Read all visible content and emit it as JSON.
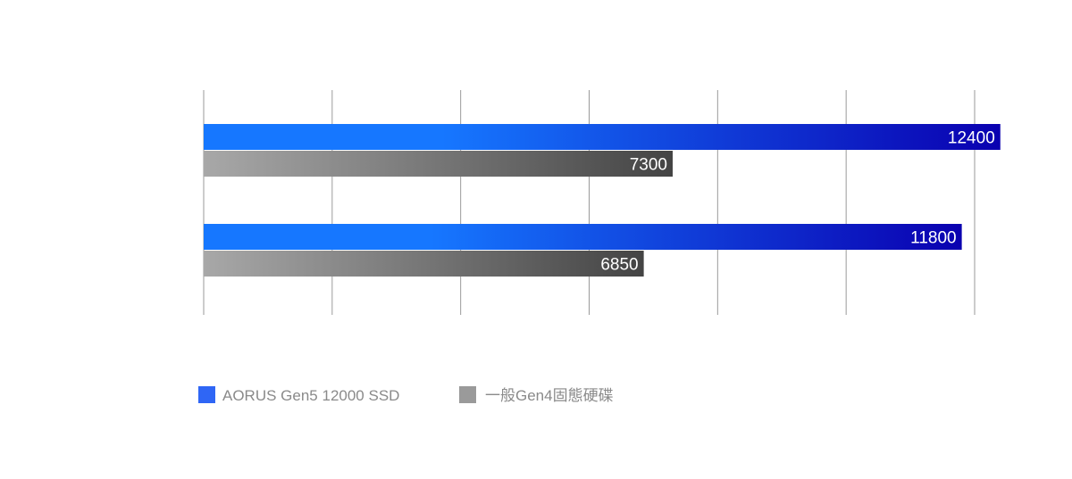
{
  "chart_data": {
    "type": "bar",
    "orientation": "horizontal",
    "title": "",
    "xlabel": "",
    "ylabel": "",
    "categories": [
      "",
      ""
    ],
    "xlim": [
      0,
      12000
    ],
    "grid": true,
    "legend_position": "bottom-left",
    "series": [
      {
        "name": "AORUS Gen5 12000 SSD",
        "values": [
          12400,
          11800
        ],
        "color_start": "#1677ff",
        "color_end": "#0a00b0",
        "legend_color": "#2f66f5"
      },
      {
        "name": "一般Gen4固態硬碟",
        "values": [
          7300,
          6850
        ],
        "color_start": "#a8a8a8",
        "color_end": "#444444",
        "legend_color": "#9a9a9a"
      }
    ]
  }
}
